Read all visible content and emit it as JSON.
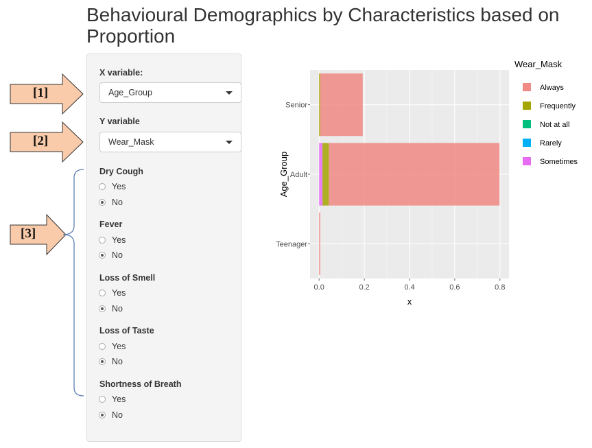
{
  "page": {
    "title": "Behavioural Demographics by Characteristics based on Proportion"
  },
  "annotations": {
    "a1": "[1]",
    "a2": "[2]",
    "a3": "[3]",
    "arrow_color": "#f9cbaa",
    "brace_color": "#5b7fb0"
  },
  "sidebar": {
    "x_label": "X variable:",
    "x_value": "Age_Group",
    "y_label": "Y variable",
    "y_value": "Wear_Mask",
    "filters": [
      {
        "name": "Dry Cough",
        "options": [
          "Yes",
          "No"
        ],
        "selected": "No"
      },
      {
        "name": "Fever",
        "options": [
          "Yes",
          "No"
        ],
        "selected": "No"
      },
      {
        "name": "Loss of Smell",
        "options": [
          "Yes",
          "No"
        ],
        "selected": "No"
      },
      {
        "name": "Loss of Taste",
        "options": [
          "Yes",
          "No"
        ],
        "selected": "No"
      },
      {
        "name": "Shortness of Breath",
        "options": [
          "Yes",
          "No"
        ],
        "selected": "No"
      }
    ]
  },
  "chart_data": {
    "type": "bar",
    "orientation": "horizontal",
    "stacked": true,
    "title": "",
    "xlabel": "x",
    "ylabel": "Age_Group",
    "xlim": [
      -0.04,
      0.84
    ],
    "xticks": [
      "0.0",
      "0.2",
      "0.4",
      "0.6",
      "0.8"
    ],
    "xtick_values": [
      0,
      0.2,
      0.4,
      0.6,
      0.8
    ],
    "categories": [
      "Senior",
      "Adult",
      "Teenager"
    ],
    "legend_title": "Wear_Mask",
    "legend_position": "right",
    "series": [
      {
        "name": "Always",
        "color": "#f08a84",
        "values": [
          0.188,
          0.755,
          0.005
        ]
      },
      {
        "name": "Frequently",
        "color": "#a3a500",
        "values": [
          0.005,
          0.028,
          0.0
        ]
      },
      {
        "name": "Not at all",
        "color": "#00bf7d",
        "values": [
          0.0,
          0.0,
          0.0
        ]
      },
      {
        "name": "Rarely",
        "color": "#00b0f6",
        "values": [
          0.0,
          0.0,
          0.0
        ]
      },
      {
        "name": "Sometimes",
        "color": "#e76bf3",
        "values": [
          0.0,
          0.015,
          0.0
        ]
      }
    ]
  }
}
